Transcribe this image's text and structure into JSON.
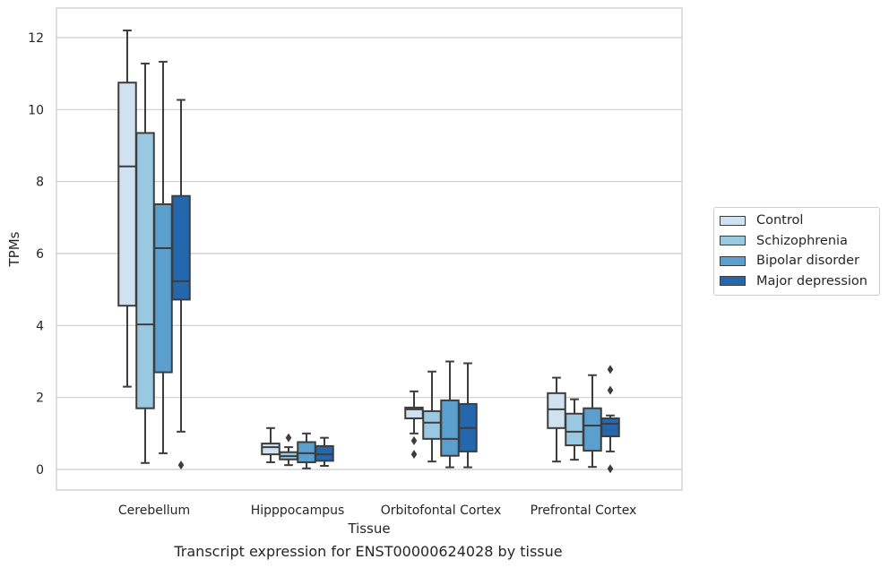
{
  "chart_data": {
    "type": "box",
    "xlabel": "Tissue",
    "ylabel": "TPMs",
    "ylim": [
      -0.6,
      12.8
    ],
    "yticks": [
      0,
      2,
      4,
      6,
      8,
      10,
      12
    ],
    "grid": true,
    "legend_position": "right",
    "categories": [
      "Cerebellum",
      "Hipppocampus",
      "Orbitofontal Cortex",
      "Prefrontal Cortex"
    ],
    "series": [
      {
        "name": "Control",
        "color": "#d0e1f2",
        "boxes": [
          {
            "min": 2.3,
            "q1": 4.55,
            "median": 8.42,
            "q3": 10.75,
            "max": 12.2,
            "outliers": []
          },
          {
            "min": 0.2,
            "q1": 0.42,
            "median": 0.62,
            "q3": 0.72,
            "max": 1.15,
            "outliers": []
          },
          {
            "min": 1.0,
            "q1": 1.42,
            "median": 1.67,
            "q3": 1.72,
            "max": 2.17,
            "outliers": [
              0.8,
              0.42
            ]
          },
          {
            "min": 0.22,
            "q1": 1.15,
            "median": 1.67,
            "q3": 2.12,
            "max": 2.55,
            "outliers": []
          }
        ]
      },
      {
        "name": "Schizophrenia",
        "color": "#9ac8e0",
        "boxes": [
          {
            "min": 0.18,
            "q1": 1.7,
            "median": 4.03,
            "q3": 9.35,
            "max": 11.28,
            "outliers": []
          },
          {
            "min": 0.12,
            "q1": 0.28,
            "median": 0.37,
            "q3": 0.48,
            "max": 0.62,
            "outliers": [
              0.88
            ]
          },
          {
            "min": 0.22,
            "q1": 0.85,
            "median": 1.3,
            "q3": 1.62,
            "max": 2.72,
            "outliers": []
          },
          {
            "min": 0.27,
            "q1": 0.67,
            "median": 1.05,
            "q3": 1.55,
            "max": 1.95,
            "outliers": []
          }
        ]
      },
      {
        "name": "Bipolar disorder",
        "color": "#5a9fcd",
        "boxes": [
          {
            "min": 0.45,
            "q1": 2.7,
            "median": 6.15,
            "q3": 7.37,
            "max": 11.33,
            "outliers": []
          },
          {
            "min": 0.03,
            "q1": 0.2,
            "median": 0.45,
            "q3": 0.76,
            "max": 1.0,
            "outliers": []
          },
          {
            "min": 0.06,
            "q1": 0.38,
            "median": 0.85,
            "q3": 1.92,
            "max": 3.0,
            "outliers": []
          },
          {
            "min": 0.07,
            "q1": 0.52,
            "median": 1.22,
            "q3": 1.7,
            "max": 2.62,
            "outliers": []
          }
        ]
      },
      {
        "name": "Major depression",
        "color": "#2467ad",
        "boxes": [
          {
            "min": 1.05,
            "q1": 4.72,
            "median": 5.23,
            "q3": 7.6,
            "max": 10.27,
            "outliers": [
              0.12
            ]
          },
          {
            "min": 0.1,
            "q1": 0.24,
            "median": 0.42,
            "q3": 0.65,
            "max": 0.88,
            "outliers": []
          },
          {
            "min": 0.06,
            "q1": 0.5,
            "median": 1.15,
            "q3": 1.82,
            "max": 2.95,
            "outliers": []
          },
          {
            "min": 0.5,
            "q1": 0.92,
            "median": 1.27,
            "q3": 1.42,
            "max": 1.5,
            "outliers": [
              2.78,
              2.2,
              0.02
            ]
          }
        ]
      }
    ]
  },
  "caption": "Transcript expression for ENST00000624028 by tissue"
}
